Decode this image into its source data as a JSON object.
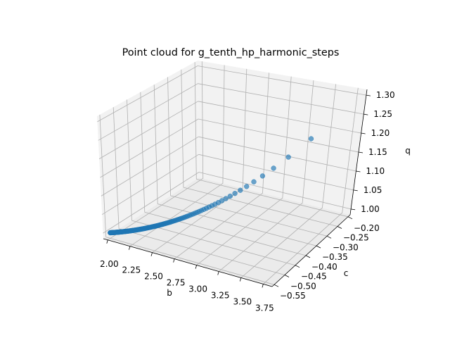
{
  "chart_data": {
    "type": "scatter",
    "projection": "3d",
    "title": "Point cloud for g_tenth_hp_harmonic_steps",
    "xlabel": "b",
    "ylabel": "c",
    "zlabel": "q",
    "xlim": [
      1.95,
      3.85
    ],
    "ylim": [
      -0.56,
      -0.19
    ],
    "zlim": [
      0.985,
      1.315
    ],
    "xticks": [
      2.0,
      2.25,
      2.5,
      2.75,
      3.0,
      3.25,
      3.5,
      3.75
    ],
    "xtick_labels": [
      "2.00",
      "2.25",
      "2.50",
      "2.75",
      "3.00",
      "3.25",
      "3.50",
      "3.75"
    ],
    "yticks": [
      -0.55,
      -0.5,
      -0.45,
      -0.4,
      -0.35,
      -0.3,
      -0.25,
      -0.2
    ],
    "ytick_labels": [
      "−0.55",
      "−0.50",
      "−0.45",
      "−0.40",
      "−0.35",
      "−0.30",
      "−0.25",
      "−0.20"
    ],
    "zticks": [
      1.0,
      1.05,
      1.1,
      1.15,
      1.2,
      1.25,
      1.3
    ],
    "ztick_labels": [
      "1.00",
      "1.05",
      "1.10",
      "1.15",
      "1.20",
      "1.25",
      "1.30"
    ],
    "grid": true,
    "marker_color": "#1f77b4",
    "series": [
      {
        "generator": "harmonic_tenth_steps",
        "n_points": 150,
        "b_start": 2.0,
        "c_start": -0.55,
        "q_start": 1.0
      }
    ]
  }
}
